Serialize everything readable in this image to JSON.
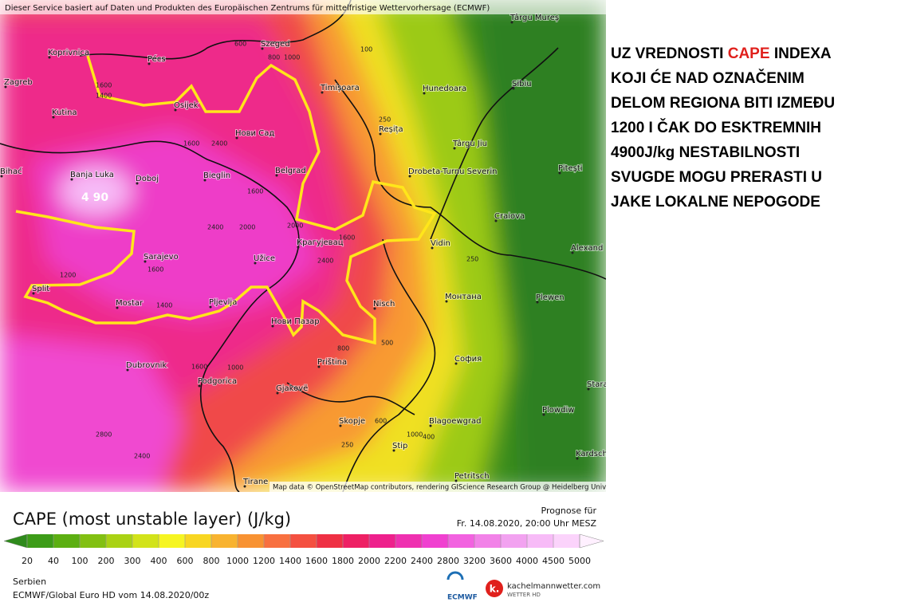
{
  "header": {
    "notice": "Dieser Service basiert auf Daten und Produkten des Europäischen Zentrums für mittelfristige Wettervorhersage (ECMWF)"
  },
  "map": {
    "attribution": "Map data © OpenStreetMap contributors, rendering GIScience Research Group @ Heidelberg University",
    "max_label": "4 90",
    "cities": [
      "Koprivnica",
      "Zagreb",
      "Kutina",
      "Pécs",
      "Osijek",
      "Szeged",
      "Timișoara",
      "Hunedoara",
      "Sibiu",
      "Târgu Mureș",
      "Нови Сад",
      "Reșița",
      "Târgu Jiu",
      "Banja Luka",
      "Doboj",
      "Bieglin",
      "Belgrad",
      "Drobeta-Turnu Severin",
      "Pitești",
      "Craiova",
      "Bihać",
      "Sarajevo",
      "Užice",
      "Крагујевац",
      "Vidin",
      "Alexand",
      "Split",
      "Mostar",
      "Pljevlja",
      "Nisch",
      "Монтана",
      "Plewen",
      "Нови Пазар",
      "Dubrovnik",
      "Priština",
      "София",
      "Podgorica",
      "Gjakovë",
      "Skopje",
      "Blagoewgrad",
      "Plowdiw",
      "Stip",
      "Kardsch",
      "Tirane",
      "Petritsch",
      "Stara"
    ],
    "contour_labels": [
      "1600",
      "1400",
      "600",
      "800",
      "1000",
      "100",
      "250",
      "1600",
      "2000",
      "1600",
      "2400",
      "2000",
      "1600",
      "1200",
      "1600",
      "2400",
      "1400",
      "1000",
      "800",
      "250",
      "500",
      "2800",
      "2400",
      "2400",
      "1600",
      "1000",
      "600",
      "400",
      "250"
    ]
  },
  "annotation": {
    "before": "UZ VREDNOSTI",
    "highlight": "CAPE",
    "after": "INDEXA",
    "lines": [
      "KOJI ĆE NAD OZNAČENIM",
      "DELOM REGIONA BITI IZMEĐU",
      "1200 I ČAK DO ESKTREMNIH",
      "4900J/kg NESTABILNOSTI",
      "SVUGDE MOGU PRERASTI U",
      "JAKE LOKALNE NEPOGODE"
    ]
  },
  "legend": {
    "title": "CAPE (most unstable layer) (J/kg)",
    "forecast_label": "Prognose für",
    "forecast_time": "Fr. 14.08.2020, 20:00 Uhr MESZ",
    "ticks": [
      20,
      40,
      100,
      200,
      300,
      400,
      600,
      800,
      1000,
      1200,
      1400,
      1600,
      1800,
      2000,
      2200,
      2400,
      2800,
      3200,
      3600,
      4000,
      4500,
      5000
    ],
    "colors": [
      "#2f8a1c",
      "#3d9c18",
      "#5caf12",
      "#82c012",
      "#aad214",
      "#d2e31a",
      "#f6f522",
      "#f8d622",
      "#f8b330",
      "#f89232",
      "#f87040",
      "#f45040",
      "#ef3044",
      "#ee2064",
      "#ee208c",
      "#ef30b0",
      "#f040d0",
      "#f262e0",
      "#f282e8",
      "#f2a2f0",
      "#f7bbf7",
      "#fbd3fb",
      "#fff0ff"
    ]
  },
  "footer": {
    "region": "Serbien",
    "model": "ECMWF/Global Euro HD vom  14.08.2020/00z",
    "ecmwf": "ECMWF",
    "site": "kachelmannwetter.com",
    "site_sub": "WETTER HD"
  }
}
